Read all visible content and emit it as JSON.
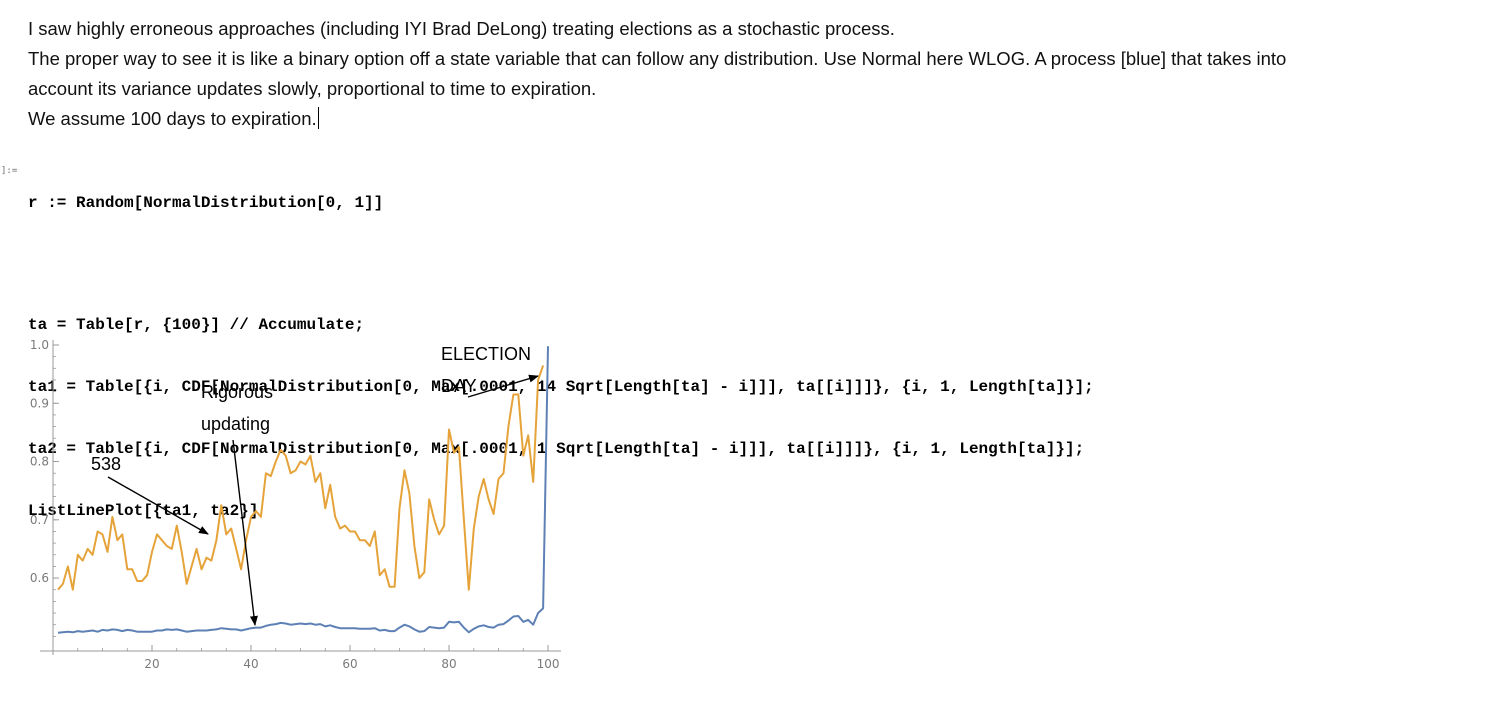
{
  "text": {
    "lines": [
      "I saw highly erroneous approaches (including IYI Brad DeLong) treating elections as a stochastic process.",
      "The proper way to see it is like a binary option off a state variable that can follow any distribution. Use Normal here WLOG. A process [blue] that takes into",
      "account its variance updates slowly, proportional to time to expiration.",
      "We assume 100 days to expiration."
    ]
  },
  "cell": {
    "in_label": "]:=",
    "code": {
      "l1": "r := Random[NormalDistribution[0, 1]]",
      "l2": "ta = Table[r, {100}] // Accumulate;",
      "l3": "ta1 = Table[{i, CDF[NormalDistribution[0, Max[.0001, 14 Sqrt[Length[ta] - i]]], ta[[i]]]}, {i, 1, Length[ta]}];",
      "l4": "ta2 = Table[{i, CDF[NormalDistribution[0, Max[.0001, 1 Sqrt[Length[ta] - i]]], ta[[i]]]}, {i, 1, Length[ta]}];",
      "l5": "ListLinePlot[{ta1, ta2}]"
    }
  },
  "chart_data": {
    "type": "line",
    "xlim": [
      0,
      101
    ],
    "ylim": [
      0.48,
      1.0
    ],
    "xticks": [
      20,
      40,
      60,
      80,
      100
    ],
    "yticks": [
      0.6,
      0.7,
      0.8,
      0.9,
      1.0
    ],
    "ytick_labels": [
      "0.6",
      "0.7",
      "0.8",
      "0.9",
      "1.0"
    ],
    "grid": false,
    "series": [
      {
        "color": "#e5a33a",
        "x": [
          1,
          2,
          3,
          4,
          5,
          6,
          7,
          8,
          9,
          10,
          11,
          12,
          13,
          14,
          15,
          16,
          17,
          18,
          19,
          20,
          21,
          22,
          23,
          24,
          25,
          26,
          27,
          28,
          29,
          30,
          31,
          32,
          33,
          34,
          35,
          36,
          37,
          38,
          39,
          40,
          41,
          42,
          43,
          44,
          45,
          46,
          47,
          48,
          49,
          50,
          51,
          52,
          53,
          54,
          55,
          56,
          57,
          58,
          59,
          60,
          61,
          62,
          63,
          64,
          65,
          66,
          67,
          68,
          69,
          70,
          71,
          72,
          73,
          74,
          75,
          76,
          77,
          78,
          79,
          80,
          81,
          82,
          83,
          84,
          85,
          86,
          87,
          88,
          89,
          90,
          91,
          92,
          93,
          94,
          95,
          96,
          97,
          98,
          99
        ],
        "values": [
          0.58,
          0.59,
          0.62,
          0.58,
          0.64,
          0.63,
          0.65,
          0.64,
          0.68,
          0.675,
          0.645,
          0.705,
          0.665,
          0.675,
          0.615,
          0.615,
          0.595,
          0.595,
          0.605,
          0.645,
          0.675,
          0.665,
          0.655,
          0.65,
          0.69,
          0.645,
          0.59,
          0.62,
          0.65,
          0.615,
          0.635,
          0.63,
          0.665,
          0.725,
          0.675,
          0.685,
          0.65,
          0.615,
          0.665,
          0.705,
          0.715,
          0.705,
          0.78,
          0.775,
          0.8,
          0.82,
          0.81,
          0.78,
          0.785,
          0.8,
          0.795,
          0.81,
          0.765,
          0.78,
          0.72,
          0.76,
          0.705,
          0.685,
          0.69,
          0.68,
          0.68,
          0.665,
          0.665,
          0.655,
          0.68,
          0.605,
          0.615,
          0.585,
          0.585,
          0.72,
          0.785,
          0.745,
          0.655,
          0.6,
          0.61,
          0.735,
          0.7,
          0.675,
          0.69,
          0.855,
          0.815,
          0.825,
          0.7,
          0.58,
          0.685,
          0.74,
          0.77,
          0.735,
          0.71,
          0.77,
          0.78,
          0.86,
          0.915,
          0.915,
          0.81,
          0.845,
          0.765,
          0.94,
          0.965
        ]
      },
      {
        "color": "#5e81b5",
        "x": [
          1,
          2,
          3,
          4,
          5,
          6,
          7,
          8,
          9,
          10,
          11,
          12,
          13,
          14,
          15,
          16,
          17,
          18,
          19,
          20,
          21,
          22,
          23,
          24,
          25,
          26,
          27,
          28,
          29,
          30,
          31,
          32,
          33,
          34,
          35,
          36,
          37,
          38,
          39,
          40,
          41,
          42,
          43,
          44,
          45,
          46,
          47,
          48,
          49,
          50,
          51,
          52,
          53,
          54,
          55,
          56,
          57,
          58,
          59,
          60,
          61,
          62,
          63,
          64,
          65,
          66,
          67,
          68,
          69,
          70,
          71,
          72,
          73,
          74,
          75,
          76,
          77,
          78,
          79,
          80,
          81,
          82,
          83,
          84,
          85,
          86,
          87,
          88,
          89,
          90,
          91,
          92,
          93,
          94,
          95,
          96,
          97,
          98,
          99,
          100
        ],
        "values": [
          0.506,
          0.507,
          0.508,
          0.507,
          0.509,
          0.508,
          0.509,
          0.51,
          0.508,
          0.511,
          0.51,
          0.512,
          0.511,
          0.509,
          0.511,
          0.51,
          0.508,
          0.508,
          0.508,
          0.508,
          0.51,
          0.51,
          0.512,
          0.511,
          0.512,
          0.51,
          0.508,
          0.509,
          0.51,
          0.51,
          0.51,
          0.511,
          0.512,
          0.514,
          0.513,
          0.512,
          0.512,
          0.51,
          0.512,
          0.514,
          0.515,
          0.515,
          0.518,
          0.52,
          0.521,
          0.523,
          0.522,
          0.52,
          0.521,
          0.522,
          0.521,
          0.522,
          0.52,
          0.521,
          0.517,
          0.519,
          0.516,
          0.514,
          0.514,
          0.514,
          0.514,
          0.513,
          0.513,
          0.513,
          0.514,
          0.51,
          0.511,
          0.509,
          0.509,
          0.515,
          0.52,
          0.517,
          0.512,
          0.508,
          0.509,
          0.516,
          0.515,
          0.514,
          0.515,
          0.525,
          0.524,
          0.525,
          0.515,
          0.507,
          0.513,
          0.517,
          0.519,
          0.516,
          0.515,
          0.52,
          0.521,
          0.527,
          0.534,
          0.535,
          0.525,
          0.528,
          0.52,
          0.54,
          0.548,
          0.998
        ]
      }
    ],
    "annotations": {
      "a538": "538",
      "rig1": "Rigorous",
      "rig2": "updating",
      "el1": "ELECTION",
      "el2": "DAY"
    }
  }
}
